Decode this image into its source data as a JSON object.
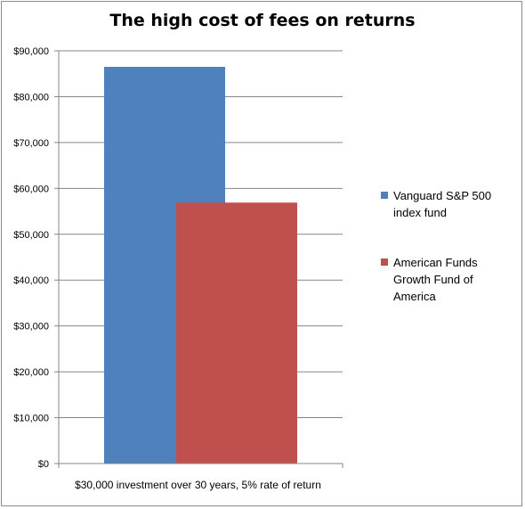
{
  "chart_data": {
    "type": "bar",
    "title": "The high cost of fees on returns",
    "categories": [
      "$30,000 investment over 30 years, 5% rate of return"
    ],
    "series": [
      {
        "name": "Vanguard S&P 500 index fund",
        "name_lines": [
          "Vanguard S&P 500",
          "index fund"
        ],
        "values": [
          86500
        ],
        "color": "#4f81bd"
      },
      {
        "name": "American Funds Growth Fund of America",
        "name_lines": [
          "American Funds",
          "Growth Fund of",
          "America"
        ],
        "values": [
          56900
        ],
        "color": "#c0504d"
      }
    ],
    "ylim": [
      0,
      90000
    ],
    "ytick_values": [
      0,
      10000,
      20000,
      30000,
      40000,
      50000,
      60000,
      70000,
      80000,
      90000
    ],
    "yticks": [
      "$0",
      "$10,000",
      "$20,000",
      "$30,000",
      "$40,000",
      "$50,000",
      "$60,000",
      "$70,000",
      "$80,000",
      "$90,000"
    ],
    "grid": true,
    "legend_position": "right",
    "xlabel": "",
    "ylabel": ""
  }
}
